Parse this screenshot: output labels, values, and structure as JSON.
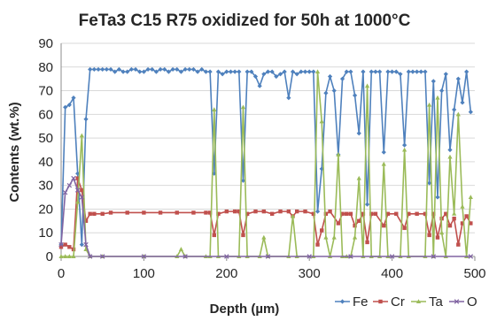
{
  "chart_data": {
    "type": "line",
    "title": "FeTa3 C15 R75 oxidized for 50h at 1000°C",
    "xlabel": "Depth (µm)",
    "ylabel": "Contents (wt.%)",
    "xlim": [
      0,
      500
    ],
    "ylim": [
      0,
      90
    ],
    "xticks": [
      "0",
      "100",
      "200",
      "300",
      "400",
      "500"
    ],
    "yticks": [
      "0",
      "10",
      "20",
      "30",
      "40",
      "50",
      "60",
      "70",
      "80",
      "90"
    ],
    "grid": "horizontal",
    "legend": "bottom",
    "series": [
      {
        "name": "Fe",
        "color": "#4f81bd",
        "marker": "diamond",
        "points": [
          [
            0,
            5
          ],
          [
            5,
            63
          ],
          [
            10,
            64
          ],
          [
            15,
            67
          ],
          [
            20,
            35
          ],
          [
            25,
            5
          ],
          [
            30,
            58
          ],
          [
            35,
            79
          ],
          [
            40,
            79
          ],
          [
            45,
            79
          ],
          [
            50,
            79
          ],
          [
            55,
            79
          ],
          [
            60,
            79
          ],
          [
            65,
            78
          ],
          [
            70,
            79
          ],
          [
            75,
            78
          ],
          [
            80,
            78
          ],
          [
            85,
            79
          ],
          [
            90,
            79
          ],
          [
            95,
            78
          ],
          [
            100,
            78
          ],
          [
            105,
            79
          ],
          [
            110,
            79
          ],
          [
            115,
            78
          ],
          [
            120,
            79
          ],
          [
            125,
            79
          ],
          [
            130,
            78
          ],
          [
            135,
            79
          ],
          [
            140,
            79
          ],
          [
            145,
            78
          ],
          [
            150,
            79
          ],
          [
            155,
            79
          ],
          [
            160,
            79
          ],
          [
            165,
            78
          ],
          [
            170,
            79
          ],
          [
            175,
            78
          ],
          [
            180,
            78
          ],
          [
            185,
            35
          ],
          [
            190,
            78
          ],
          [
            195,
            77
          ],
          [
            200,
            78
          ],
          [
            205,
            78
          ],
          [
            210,
            78
          ],
          [
            215,
            78
          ],
          [
            220,
            32
          ],
          [
            225,
            78
          ],
          [
            230,
            78
          ],
          [
            235,
            76
          ],
          [
            240,
            72
          ],
          [
            245,
            77
          ],
          [
            250,
            78
          ],
          [
            255,
            78
          ],
          [
            260,
            76
          ],
          [
            265,
            77
          ],
          [
            270,
            78
          ],
          [
            275,
            67
          ],
          [
            280,
            78
          ],
          [
            285,
            77
          ],
          [
            290,
            78
          ],
          [
            295,
            78
          ],
          [
            300,
            78
          ],
          [
            305,
            78
          ],
          [
            310,
            19
          ],
          [
            315,
            37
          ],
          [
            320,
            69
          ],
          [
            325,
            76
          ],
          [
            330,
            70
          ],
          [
            335,
            43
          ],
          [
            340,
            75
          ],
          [
            345,
            78
          ],
          [
            350,
            78
          ],
          [
            355,
            68
          ],
          [
            360,
            52
          ],
          [
            365,
            78
          ],
          [
            370,
            22
          ],
          [
            375,
            78
          ],
          [
            380,
            78
          ],
          [
            385,
            78
          ],
          [
            390,
            44
          ],
          [
            395,
            78
          ],
          [
            400,
            78
          ],
          [
            405,
            78
          ],
          [
            410,
            77
          ],
          [
            415,
            47
          ],
          [
            420,
            78
          ],
          [
            425,
            78
          ],
          [
            430,
            78
          ],
          [
            435,
            78
          ],
          [
            440,
            78
          ],
          [
            445,
            31
          ],
          [
            450,
            74
          ],
          [
            455,
            25
          ],
          [
            460,
            70
          ],
          [
            465,
            77
          ],
          [
            470,
            45
          ],
          [
            475,
            62
          ],
          [
            480,
            75
          ],
          [
            485,
            65
          ],
          [
            490,
            78
          ],
          [
            495,
            61
          ]
        ]
      },
      {
        "name": "Cr",
        "color": "#c0504d",
        "marker": "square",
        "points": [
          [
            0,
            4
          ],
          [
            5,
            5
          ],
          [
            10,
            4
          ],
          [
            15,
            3
          ],
          [
            20,
            33
          ],
          [
            25,
            28
          ],
          [
            30,
            15
          ],
          [
            35,
            18
          ],
          [
            40,
            18
          ],
          [
            50,
            18
          ],
          [
            60,
            18.5
          ],
          [
            80,
            18.5
          ],
          [
            100,
            18.5
          ],
          [
            120,
            18.5
          ],
          [
            140,
            18.5
          ],
          [
            160,
            18.5
          ],
          [
            175,
            18.5
          ],
          [
            180,
            18.5
          ],
          [
            185,
            9
          ],
          [
            190,
            18
          ],
          [
            200,
            19
          ],
          [
            210,
            19
          ],
          [
            215,
            19
          ],
          [
            220,
            9
          ],
          [
            225,
            18
          ],
          [
            235,
            19
          ],
          [
            245,
            19
          ],
          [
            255,
            18
          ],
          [
            265,
            19
          ],
          [
            275,
            19
          ],
          [
            280,
            17
          ],
          [
            285,
            19
          ],
          [
            295,
            19
          ],
          [
            305,
            18
          ],
          [
            310,
            5
          ],
          [
            315,
            11
          ],
          [
            320,
            18
          ],
          [
            325,
            19
          ],
          [
            335,
            14
          ],
          [
            340,
            18
          ],
          [
            345,
            18
          ],
          [
            350,
            18
          ],
          [
            355,
            13
          ],
          [
            360,
            15
          ],
          [
            365,
            18
          ],
          [
            370,
            6
          ],
          [
            375,
            18
          ],
          [
            380,
            18
          ],
          [
            390,
            13
          ],
          [
            395,
            18
          ],
          [
            405,
            18
          ],
          [
            415,
            12
          ],
          [
            420,
            18
          ],
          [
            430,
            18
          ],
          [
            440,
            18
          ],
          [
            445,
            9
          ],
          [
            450,
            18
          ],
          [
            455,
            8
          ],
          [
            460,
            16
          ],
          [
            465,
            18
          ],
          [
            470,
            13
          ],
          [
            475,
            16
          ],
          [
            480,
            5
          ],
          [
            485,
            14
          ],
          [
            490,
            17
          ],
          [
            495,
            14
          ]
        ]
      },
      {
        "name": "Ta",
        "color": "#9bbb59",
        "marker": "triangle",
        "points": [
          [
            0,
            0
          ],
          [
            5,
            0
          ],
          [
            10,
            0
          ],
          [
            15,
            0
          ],
          [
            20,
            23
          ],
          [
            25,
            51
          ],
          [
            30,
            3
          ],
          [
            35,
            0
          ],
          [
            50,
            0
          ],
          [
            100,
            0
          ],
          [
            140,
            0
          ],
          [
            145,
            3
          ],
          [
            150,
            0
          ],
          [
            175,
            0
          ],
          [
            180,
            0
          ],
          [
            185,
            62
          ],
          [
            190,
            0
          ],
          [
            215,
            0
          ],
          [
            220,
            63
          ],
          [
            225,
            0
          ],
          [
            240,
            0
          ],
          [
            245,
            8
          ],
          [
            250,
            0
          ],
          [
            275,
            0
          ],
          [
            280,
            17
          ],
          [
            285,
            0
          ],
          [
            305,
            0
          ],
          [
            310,
            78
          ],
          [
            315,
            57
          ],
          [
            320,
            8
          ],
          [
            325,
            0
          ],
          [
            330,
            8
          ],
          [
            335,
            43
          ],
          [
            340,
            0
          ],
          [
            345,
            0
          ],
          [
            350,
            0
          ],
          [
            355,
            8
          ],
          [
            360,
            33
          ],
          [
            365,
            0
          ],
          [
            370,
            72
          ],
          [
            375,
            0
          ],
          [
            385,
            0
          ],
          [
            390,
            39
          ],
          [
            395,
            0
          ],
          [
            410,
            0
          ],
          [
            415,
            45
          ],
          [
            420,
            0
          ],
          [
            440,
            0
          ],
          [
            445,
            64
          ],
          [
            450,
            0
          ],
          [
            455,
            67
          ],
          [
            460,
            10
          ],
          [
            465,
            0
          ],
          [
            470,
            42
          ],
          [
            475,
            18
          ],
          [
            480,
            60
          ],
          [
            485,
            21
          ],
          [
            490,
            0
          ],
          [
            495,
            25
          ]
        ]
      },
      {
        "name": "O",
        "color": "#8064a2",
        "marker": "cross",
        "points": [
          [
            0,
            5
          ],
          [
            5,
            27
          ],
          [
            10,
            30
          ],
          [
            15,
            33
          ],
          [
            20,
            28
          ],
          [
            25,
            25
          ],
          [
            30,
            5
          ],
          [
            35,
            0
          ],
          [
            50,
            0
          ],
          [
            100,
            0
          ],
          [
            150,
            0
          ],
          [
            200,
            0
          ],
          [
            250,
            0
          ],
          [
            300,
            0
          ],
          [
            350,
            0
          ],
          [
            400,
            0
          ],
          [
            450,
            0
          ],
          [
            495,
            0
          ]
        ]
      }
    ]
  }
}
